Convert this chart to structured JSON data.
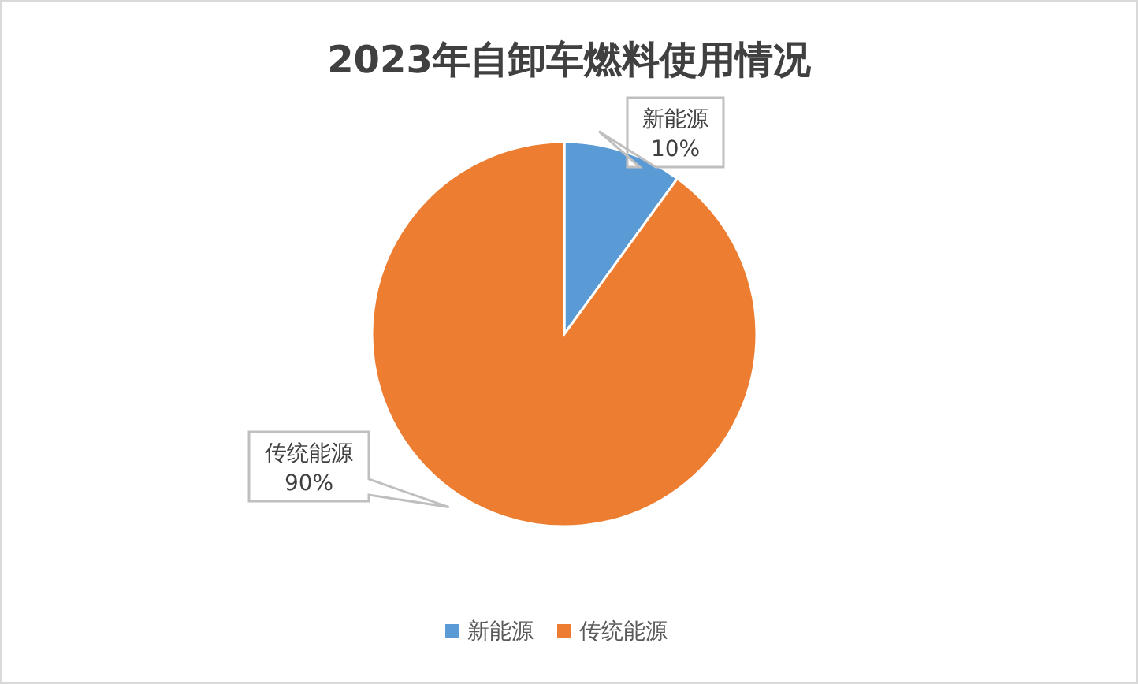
{
  "chart_data": {
    "type": "pie",
    "title": "2023年自卸车燃料使用情况",
    "categories": [
      "新能源",
      "传统能源"
    ],
    "values": [
      10,
      90
    ],
    "colors": [
      "#5b9bd5",
      "#ed7d31"
    ],
    "value_labels": [
      "10%",
      "90%"
    ],
    "legend": "bottom"
  }
}
